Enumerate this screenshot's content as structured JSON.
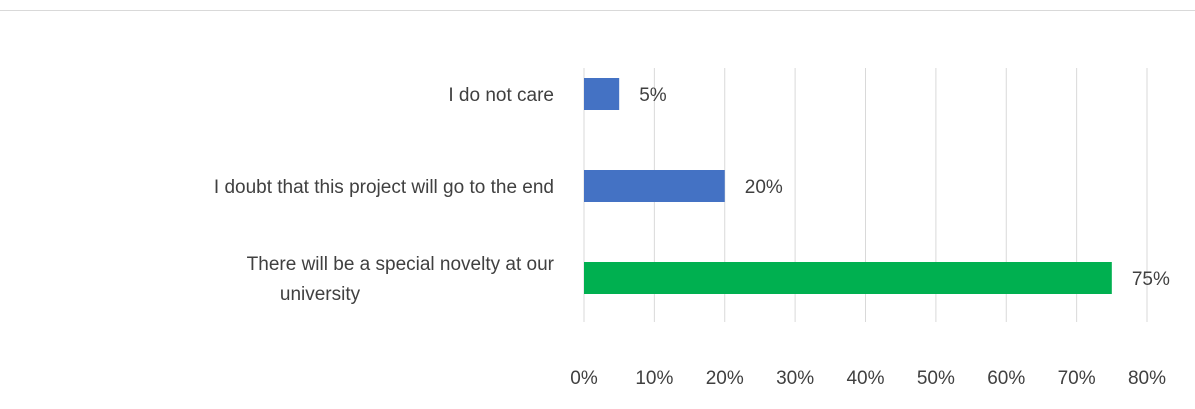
{
  "chart_data": {
    "type": "bar",
    "orientation": "horizontal",
    "title": "",
    "xlabel": "",
    "ylabel": "",
    "categories": [
      [
        "I do not care"
      ],
      [
        "I doubt that this project will go to the end"
      ],
      [
        "There will be a special novelty at our",
        "university"
      ]
    ],
    "values": [
      5,
      20,
      75
    ],
    "data_labels": [
      "5%",
      "20%",
      "75%"
    ],
    "bar_colors": [
      "#4472c4",
      "#4472c4",
      "#00b050"
    ],
    "xlim": [
      0,
      80
    ],
    "xticks": [
      0,
      10,
      20,
      30,
      40,
      50,
      60,
      70,
      80
    ],
    "xtick_labels": [
      "0%",
      "10%",
      "20%",
      "30%",
      "40%",
      "50%",
      "60%",
      "70%",
      "80%"
    ],
    "grid": true,
    "legend": "none"
  }
}
